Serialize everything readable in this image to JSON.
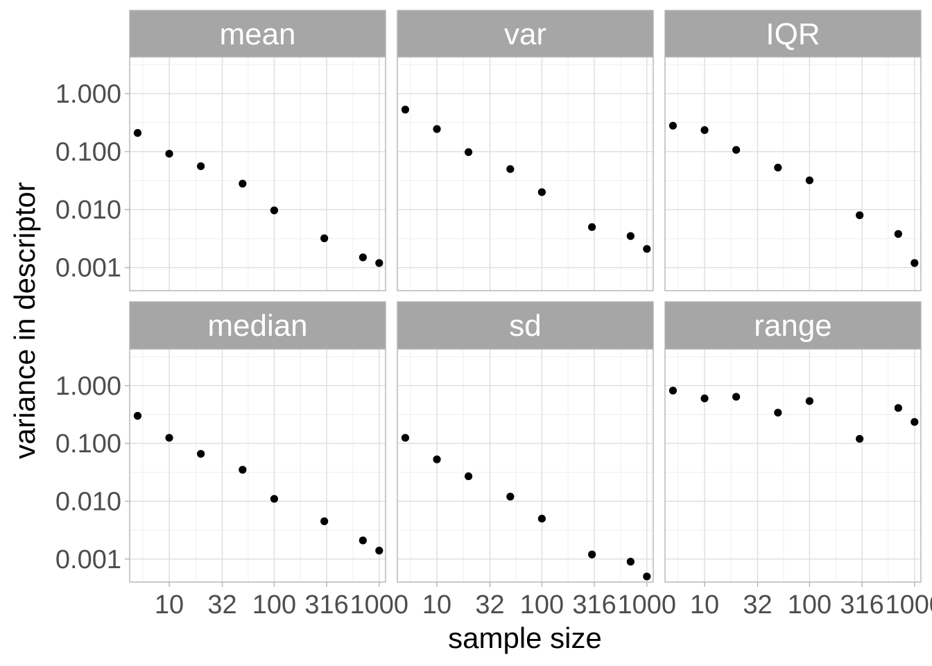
{
  "chart_data": {
    "type": "scatter",
    "xlabel": "sample size",
    "ylabel": "variance in descriptor",
    "x_scale": "log10",
    "y_scale": "log10",
    "xlim": [
      4.2,
      1150
    ],
    "ylim": [
      0.0004,
      4.3
    ],
    "x_ticks": [
      10,
      32,
      100,
      316,
      1000
    ],
    "x_tick_labels": [
      "10",
      "32",
      "100",
      "316",
      "1000"
    ],
    "y_ticks": [
      0.001,
      0.01,
      0.1,
      1
    ],
    "y_tick_labels": [
      "0.001",
      "0.010",
      "0.100",
      "1.000"
    ],
    "grid": true,
    "panels": [
      {
        "title": "mean",
        "points": [
          {
            "x": 5,
            "y": 0.21
          },
          {
            "x": 10,
            "y": 0.092
          },
          {
            "x": 20,
            "y": 0.056
          },
          {
            "x": 50,
            "y": 0.028
          },
          {
            "x": 100,
            "y": 0.0097
          },
          {
            "x": 300,
            "y": 0.0032
          },
          {
            "x": 700,
            "y": 0.0015
          },
          {
            "x": 1000,
            "y": 0.0012
          }
        ]
      },
      {
        "title": "var",
        "points": [
          {
            "x": 5,
            "y": 0.53
          },
          {
            "x": 10,
            "y": 0.245
          },
          {
            "x": 20,
            "y": 0.098
          },
          {
            "x": 50,
            "y": 0.05
          },
          {
            "x": 100,
            "y": 0.02
          },
          {
            "x": 300,
            "y": 0.005
          },
          {
            "x": 700,
            "y": 0.0035
          },
          {
            "x": 1000,
            "y": 0.0021
          }
        ]
      },
      {
        "title": "IQR",
        "points": [
          {
            "x": 5,
            "y": 0.28
          },
          {
            "x": 10,
            "y": 0.235
          },
          {
            "x": 20,
            "y": 0.107
          },
          {
            "x": 50,
            "y": 0.053
          },
          {
            "x": 100,
            "y": 0.032
          },
          {
            "x": 300,
            "y": 0.008
          },
          {
            "x": 700,
            "y": 0.0038
          },
          {
            "x": 1000,
            "y": 0.0012
          }
        ]
      },
      {
        "title": "median",
        "points": [
          {
            "x": 5,
            "y": 0.3
          },
          {
            "x": 10,
            "y": 0.125
          },
          {
            "x": 20,
            "y": 0.066
          },
          {
            "x": 50,
            "y": 0.035
          },
          {
            "x": 100,
            "y": 0.011
          },
          {
            "x": 300,
            "y": 0.0045
          },
          {
            "x": 700,
            "y": 0.0021
          },
          {
            "x": 1000,
            "y": 0.0014
          }
        ]
      },
      {
        "title": "sd",
        "points": [
          {
            "x": 5,
            "y": 0.125
          },
          {
            "x": 10,
            "y": 0.053
          },
          {
            "x": 20,
            "y": 0.027
          },
          {
            "x": 50,
            "y": 0.012
          },
          {
            "x": 100,
            "y": 0.005
          },
          {
            "x": 300,
            "y": 0.0012
          },
          {
            "x": 700,
            "y": 0.0009
          },
          {
            "x": 1000,
            "y": 0.0005
          }
        ]
      },
      {
        "title": "range",
        "points": [
          {
            "x": 5,
            "y": 0.82
          },
          {
            "x": 10,
            "y": 0.6
          },
          {
            "x": 20,
            "y": 0.64
          },
          {
            "x": 50,
            "y": 0.34
          },
          {
            "x": 100,
            "y": 0.54
          },
          {
            "x": 300,
            "y": 0.12
          },
          {
            "x": 700,
            "y": 0.41
          },
          {
            "x": 1000,
            "y": 0.235
          }
        ]
      }
    ]
  },
  "colors": {
    "panel_border": "#b3b3b3",
    "grid_major": "#dedede",
    "grid_minor": "#eeeeee",
    "strip_fill": "#a6a6a6",
    "strip_text": "#ffffff",
    "tick_text": "#4d4d4d",
    "tick_mark": "#b3b3b3",
    "point": "#000000"
  }
}
